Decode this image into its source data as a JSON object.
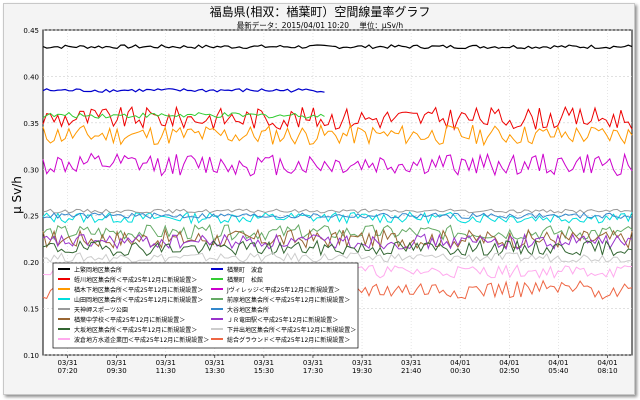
{
  "chart_data": {
    "type": "line",
    "title": "福島県(相双：楢葉町）空間線量率グラフ",
    "subtitle_latest": "最新データ：2015/04/01 10:20",
    "subtitle_unit": "単位：μSv/h",
    "ylabel": "μ Sv/h",
    "xlabel": "",
    "ylim": [
      0.1,
      0.45
    ],
    "yticks": [
      "0.10",
      "0.15",
      "0.20",
      "0.25",
      "0.30",
      "0.35",
      "0.40",
      "0.45"
    ],
    "grid": true,
    "legend_position": "bottom-left inside plot",
    "x_labels": [
      [
        "03/31",
        "07:20"
      ],
      [
        "03/31",
        "09:30"
      ],
      [
        "03/31",
        "11:30"
      ],
      [
        "03/31",
        "13:30"
      ],
      [
        "03/31",
        "15:30"
      ],
      [
        "03/31",
        "17:30"
      ],
      [
        "03/31",
        "19:30"
      ],
      [
        "03/31",
        "21:40"
      ],
      [
        "04/01",
        "00:30"
      ],
      [
        "04/01",
        "02:50"
      ],
      [
        "04/01",
        "05:40"
      ],
      [
        "04/01",
        "08:10"
      ]
    ],
    "num_points": 160,
    "series": [
      {
        "name": "上繁岡地区集会所",
        "color": "#000000",
        "base": 0.432,
        "amp": 0.002,
        "end": 1.0
      },
      {
        "name": "楢葉町　波倉",
        "color": "#0000cc",
        "base": 0.385,
        "amp": 0.002,
        "end": 0.48
      },
      {
        "name": "蛭川地区集会所＜平成25年12月に新規設置＞",
        "color": "#ee0000",
        "base": 0.355,
        "amp": 0.012,
        "end": 1.0
      },
      {
        "name": "楢葉町　松館",
        "color": "#33cc33",
        "base": 0.358,
        "amp": 0.003,
        "end": 0.48
      },
      {
        "name": "楢木下地区集会所＜平成25年12月に新規設置＞",
        "color": "#ff9900",
        "base": 0.337,
        "amp": 0.011,
        "end": 1.0
      },
      {
        "name": "Jヴィレッジ＜平成25年12月に新規設置＞",
        "color": "#cc00cc",
        "base": 0.305,
        "amp": 0.012,
        "end": 1.0
      },
      {
        "name": "山田岡地区集会所＜平成25年12月に新規設置＞",
        "color": "#00dddd",
        "base": 0.248,
        "amp": 0.006,
        "end": 1.0
      },
      {
        "name": "前原地区集会所＜平成25年12月に新規設置＞",
        "color": "#66aa66",
        "base": 0.232,
        "amp": 0.008,
        "end": 1.0
      },
      {
        "name": "天神岬スポーツ公園",
        "color": "#999999",
        "base": 0.255,
        "amp": 0.002,
        "end": 1.0
      },
      {
        "name": "大谷地区集会所",
        "color": "#3388cc",
        "base": 0.25,
        "amp": 0.003,
        "end": 1.0
      },
      {
        "name": "楢葉中学校＜平成25年12月に新規設置＞",
        "color": "#996633",
        "base": 0.225,
        "amp": 0.01,
        "end": 1.0
      },
      {
        "name": "ＪＲ竜田駅＜平成25年12月に新規設置＞",
        "color": "#9933cc",
        "base": 0.222,
        "amp": 0.008,
        "end": 1.0
      },
      {
        "name": "大坂地区集会所＜平成25年12月に新規設置＞",
        "color": "#336633",
        "base": 0.215,
        "amp": 0.008,
        "end": 1.0
      },
      {
        "name": "下井出地区集会所＜平成25年12月に新規設置＞",
        "color": "#cccccc",
        "base": 0.205,
        "amp": 0.005,
        "end": 1.0
      },
      {
        "name": "波倉地方水道企業団＜平成25年12月に新規設置＞",
        "color": "#ffaaee",
        "base": 0.19,
        "amp": 0.007,
        "end": 1.0
      },
      {
        "name": "総合グラウンド＜平成25年12月に新規設置＞",
        "color": "#ee6644",
        "base": 0.17,
        "amp": 0.01,
        "end": 1.0
      }
    ]
  }
}
